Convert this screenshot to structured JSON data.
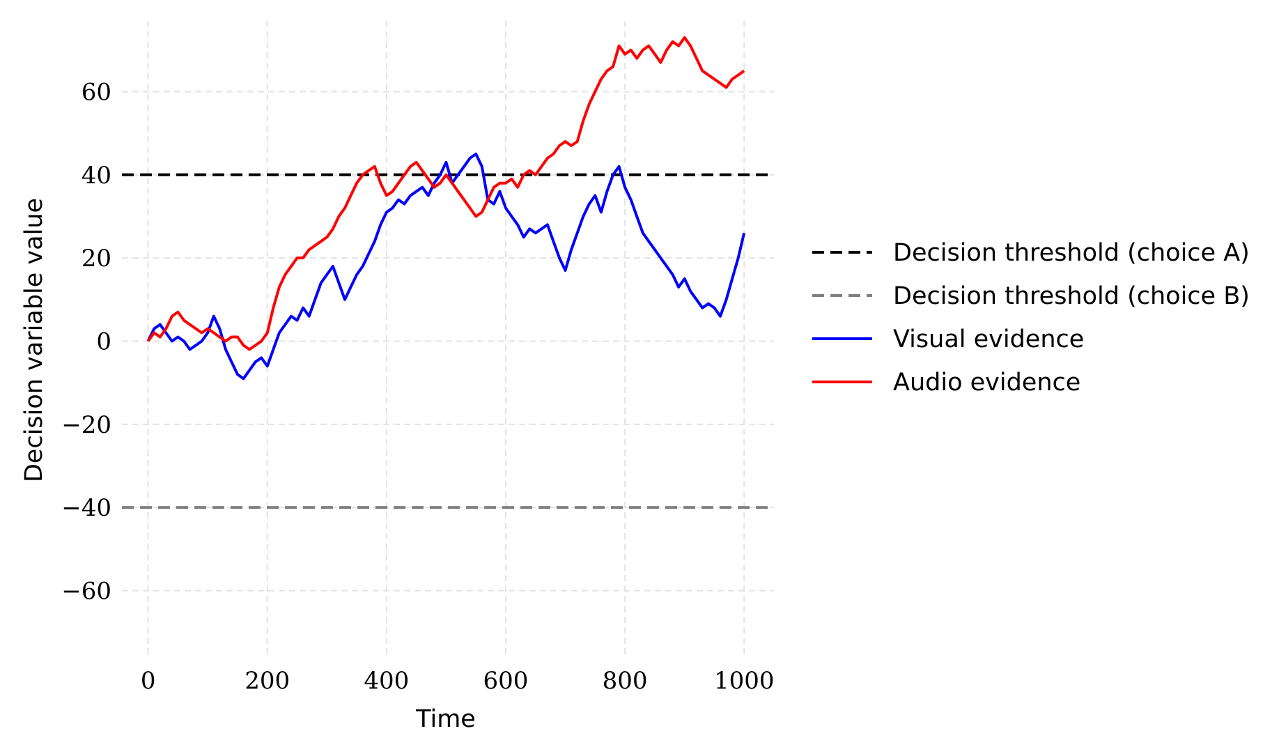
{
  "chart_data": {
    "type": "line",
    "title": "",
    "xlabel": "Time",
    "ylabel": "Decision variable value",
    "xlim": [
      -44,
      1050
    ],
    "ylim": [
      -76,
      77
    ],
    "xticks": [
      0,
      200,
      400,
      600,
      800,
      1000
    ],
    "xtick_labels": [
      "0",
      "200",
      "400",
      "600",
      "800",
      "1000"
    ],
    "yticks": [
      60,
      40,
      20,
      0,
      -20,
      -40,
      -60
    ],
    "ytick_labels": [
      "60",
      "40",
      "20",
      "0",
      "−20",
      "−40",
      "−60"
    ],
    "grid": true,
    "legend_position": "right",
    "thresholds": [
      {
        "name": "Decision threshold (choice A)",
        "value": 40,
        "color": "#000000",
        "style": "dashed"
      },
      {
        "name": "Decision threshold (choice B)",
        "value": -40,
        "color": "#808080",
        "style": "dashed"
      }
    ],
    "series": [
      {
        "name": "Visual evidence",
        "color": "#0000ff",
        "x": [
          0,
          10,
          20,
          30,
          40,
          50,
          60,
          70,
          80,
          90,
          100,
          110,
          120,
          130,
          140,
          150,
          160,
          170,
          180,
          190,
          200,
          210,
          220,
          230,
          240,
          250,
          260,
          270,
          280,
          290,
          300,
          310,
          320,
          330,
          340,
          350,
          360,
          370,
          380,
          390,
          400,
          410,
          420,
          430,
          440,
          450,
          460,
          470,
          480,
          490,
          500,
          510,
          520,
          530,
          540,
          550,
          560,
          570,
          580,
          590,
          600,
          610,
          620,
          630,
          640,
          650,
          660,
          670,
          680,
          690,
          700,
          710,
          720,
          730,
          740,
          750,
          760,
          770,
          780,
          790,
          800,
          810,
          820,
          830,
          840,
          850,
          860,
          870,
          880,
          890,
          900,
          910,
          920,
          930,
          940,
          950,
          960,
          970,
          980,
          990,
          1000
        ],
        "values": [
          0,
          3,
          4,
          2,
          0,
          1,
          0,
          -2,
          -1,
          0,
          2,
          6,
          3,
          -2,
          -5,
          -8,
          -9,
          -7,
          -5,
          -4,
          -6,
          -2,
          2,
          4,
          6,
          5,
          8,
          6,
          10,
          14,
          16,
          18,
          14,
          10,
          13,
          16,
          18,
          21,
          24,
          28,
          31,
          32,
          34,
          33,
          35,
          36,
          37,
          35,
          38,
          40,
          43,
          38,
          40,
          42,
          44,
          45,
          42,
          34,
          33,
          36,
          32,
          30,
          28,
          25,
          27,
          26,
          27,
          28,
          24,
          20,
          17,
          22,
          26,
          30,
          33,
          35,
          31,
          36,
          40,
          42,
          37,
          34,
          30,
          26,
          24,
          22,
          20,
          18,
          16,
          13,
          15,
          12,
          10,
          8,
          9,
          8,
          6,
          10,
          15,
          20,
          26
        ]
      },
      {
        "name": "Audio evidence",
        "color": "#ff0000",
        "x": [
          0,
          10,
          20,
          30,
          40,
          50,
          60,
          70,
          80,
          90,
          100,
          110,
          120,
          130,
          140,
          150,
          160,
          170,
          180,
          190,
          200,
          210,
          220,
          230,
          240,
          250,
          260,
          270,
          280,
          290,
          300,
          310,
          320,
          330,
          340,
          350,
          360,
          370,
          380,
          390,
          400,
          410,
          420,
          430,
          440,
          450,
          460,
          470,
          480,
          490,
          500,
          510,
          520,
          530,
          540,
          550,
          560,
          570,
          580,
          590,
          600,
          610,
          620,
          630,
          640,
          650,
          660,
          670,
          680,
          690,
          700,
          710,
          720,
          730,
          740,
          750,
          760,
          770,
          780,
          790,
          800,
          810,
          820,
          830,
          840,
          850,
          860,
          870,
          880,
          890,
          900,
          910,
          920,
          930,
          940,
          950,
          960,
          970,
          980,
          990,
          1000
        ],
        "values": [
          0,
          2,
          1,
          3,
          6,
          7,
          5,
          4,
          3,
          2,
          3,
          2,
          1,
          0,
          1,
          1,
          -1,
          -2,
          -1,
          0,
          2,
          8,
          13,
          16,
          18,
          20,
          20,
          22,
          23,
          24,
          25,
          27,
          30,
          32,
          35,
          38,
          40,
          41,
          42,
          38,
          35,
          36,
          38,
          40,
          42,
          43,
          41,
          39,
          37,
          38,
          40,
          38,
          36,
          34,
          32,
          30,
          31,
          34,
          37,
          38,
          38,
          39,
          37,
          40,
          41,
          40,
          42,
          44,
          45,
          47,
          48,
          47,
          48,
          53,
          57,
          60,
          63,
          65,
          66,
          71,
          69,
          70,
          68,
          70,
          71,
          69,
          67,
          70,
          72,
          71,
          73,
          71,
          68,
          65,
          64,
          63,
          62,
          61,
          63,
          64,
          65
        ]
      }
    ]
  }
}
